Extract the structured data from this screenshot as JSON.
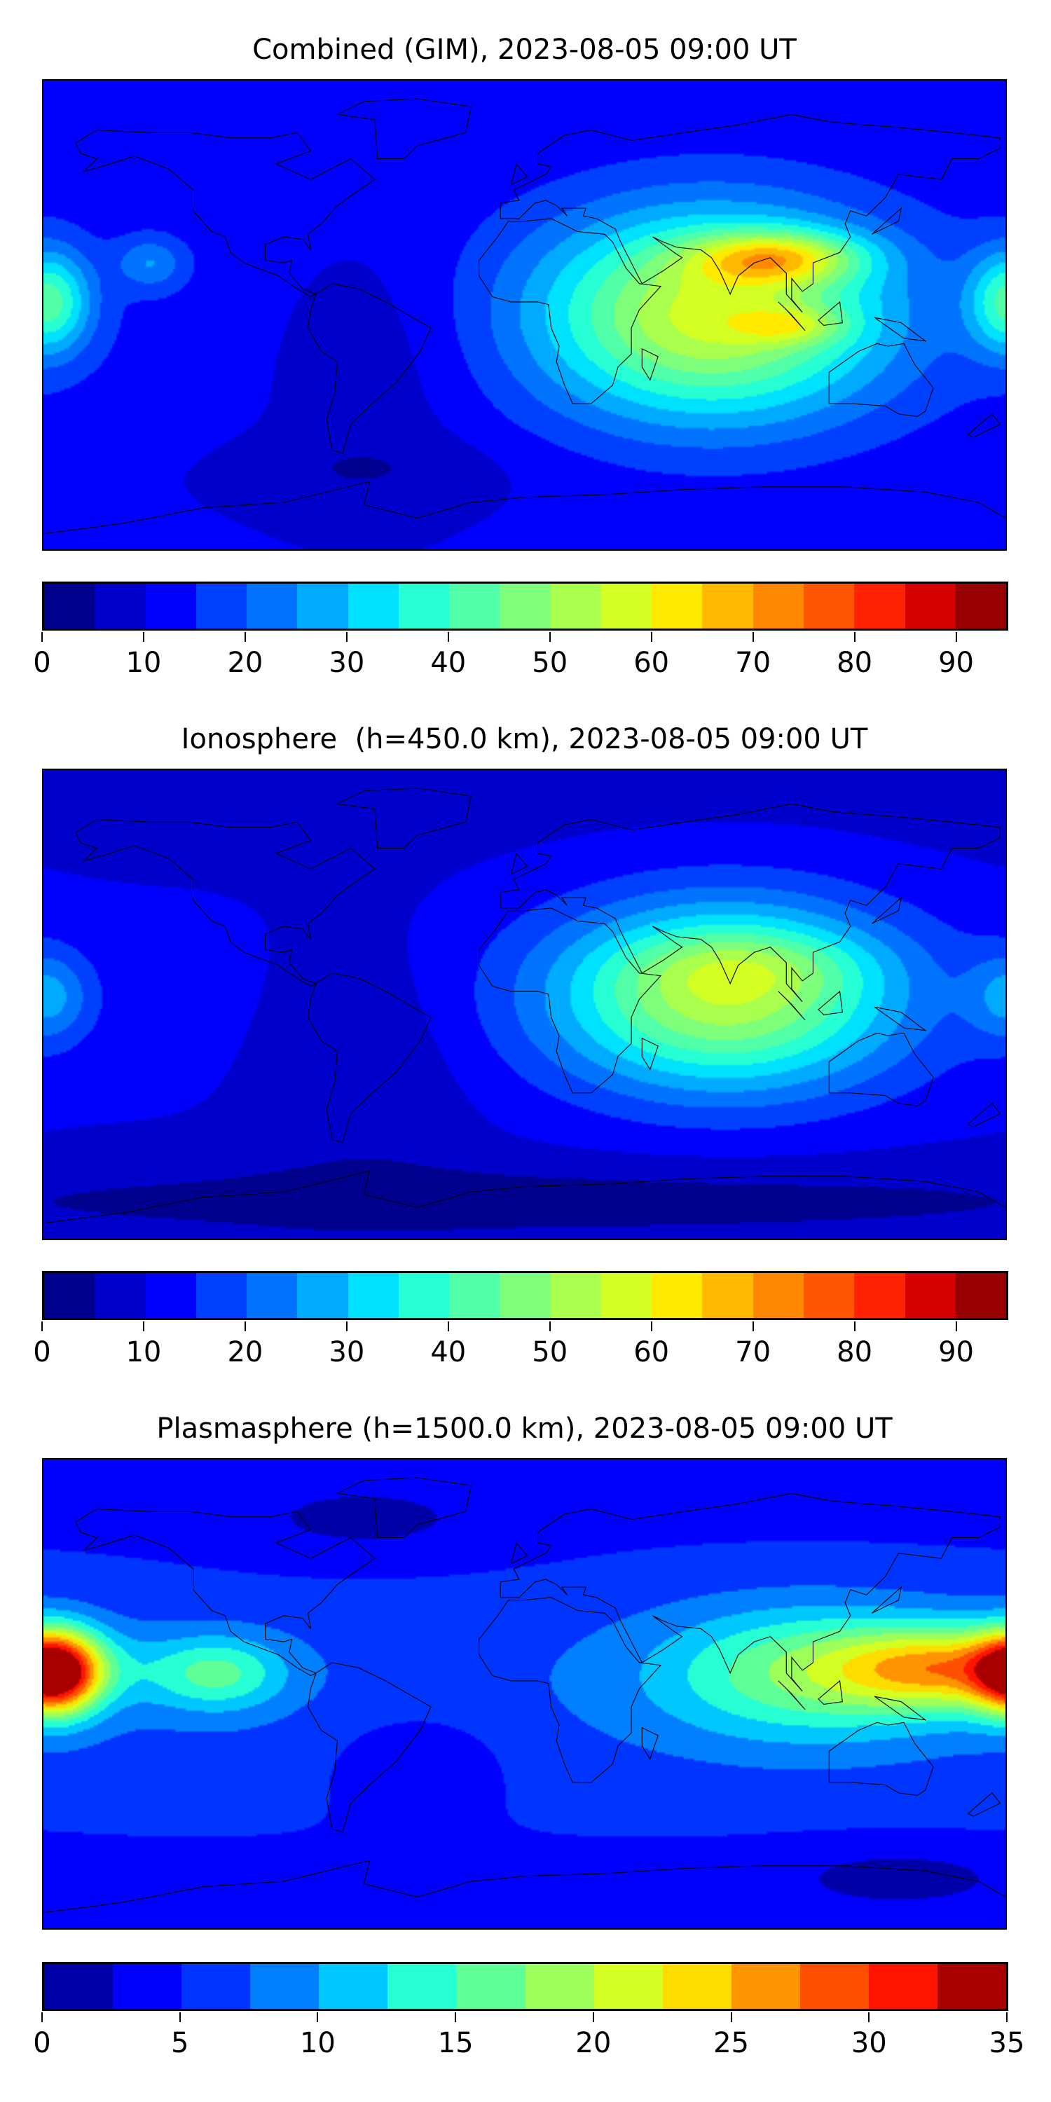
{
  "chart_data": [
    {
      "type": "heatmap",
      "title": "Combined (GIM), 2023-08-05 09:00 UT",
      "projection": "plate-carree global",
      "xlim": [
        -180,
        180
      ],
      "ylim": [
        -90,
        90
      ],
      "levels_min": 0,
      "levels_max": 95,
      "level_step": 5,
      "colors": [
        "#00008f",
        "#0000cc",
        "#0000ff",
        "#0040ff",
        "#0074ff",
        "#00aaff",
        "#00e0ff",
        "#26ffd4",
        "#50ffa8",
        "#7dff7b",
        "#aaff4d",
        "#d4ff23",
        "#ffea00",
        "#ffba00",
        "#ff8800",
        "#ff5500",
        "#ff2200",
        "#d60000",
        "#990000"
      ],
      "colorbar_ticks": [
        "0",
        "10",
        "20",
        "30",
        "40",
        "50",
        "60",
        "70",
        "80",
        "90"
      ],
      "tick_values": [
        0,
        10,
        20,
        30,
        40,
        50,
        60,
        70,
        80,
        90
      ],
      "field_base": 12,
      "features": [
        {
          "lon": 70,
          "lat": 0,
          "amp": 44,
          "sx": 45,
          "sy": 28
        },
        {
          "lon": 95,
          "lat": 22,
          "amp": 30,
          "sx": 22,
          "sy": 7
        },
        {
          "lon": 100,
          "lat": -4,
          "amp": 14,
          "sx": 14,
          "sy": 5
        },
        {
          "lon": -178,
          "lat": 5,
          "amp": 28,
          "sx": 11,
          "sy": 14
        },
        {
          "lon": -140,
          "lat": 20,
          "amp": 12,
          "sx": 9,
          "sy": 7
        },
        {
          "lon": -60,
          "lat": -15,
          "amp": -6,
          "sx": 30,
          "sy": 35
        },
        {
          "lon": -60,
          "lat": -60,
          "amp": -4,
          "sx": 40,
          "sy": 10
        }
      ]
    },
    {
      "type": "heatmap",
      "title": "Ionosphere  (h=450.0 km), 2023-08-05 09:00 UT",
      "projection": "plate-carree global",
      "xlim": [
        -180,
        180
      ],
      "ylim": [
        -90,
        90
      ],
      "levels_min": 0,
      "levels_max": 95,
      "level_step": 5,
      "colors": [
        "#00008f",
        "#0000cc",
        "#0000ff",
        "#0040ff",
        "#0074ff",
        "#00aaff",
        "#00e0ff",
        "#26ffd4",
        "#50ffa8",
        "#7dff7b",
        "#aaff4d",
        "#d4ff23",
        "#ffea00",
        "#ffba00",
        "#ff8800",
        "#ff5500",
        "#ff2200",
        "#d60000",
        "#990000"
      ],
      "colorbar_ticks": [
        "0",
        "10",
        "20",
        "30",
        "40",
        "50",
        "60",
        "70",
        "80",
        "90"
      ],
      "tick_values": [
        0,
        10,
        20,
        30,
        40,
        50,
        60,
        70,
        80,
        90
      ],
      "field_base": 10,
      "features": [
        {
          "lon": 75,
          "lat": 3,
          "amp": 42,
          "sx": 45,
          "sy": 25
        },
        {
          "lon": 85,
          "lat": 15,
          "amp": 8,
          "sx": 30,
          "sy": 9
        },
        {
          "lon": -178,
          "lat": 3,
          "amp": 14,
          "sx": 11,
          "sy": 12
        },
        {
          "lon": -60,
          "lat": -20,
          "amp": -5,
          "sx": 28,
          "sy": 35
        },
        {
          "lon": 0,
          "lat": -75,
          "amp": -6,
          "sx": 180,
          "sy": 10
        }
      ]
    },
    {
      "type": "heatmap",
      "title": "Plasmasphere (h=1500.0 km), 2023-08-05 09:00 UT",
      "projection": "plate-carree global",
      "xlim": [
        -180,
        180
      ],
      "ylim": [
        -90,
        90
      ],
      "levels_min": 0,
      "levels_max": 35,
      "level_step": 2.5,
      "colors": [
        "#0000a8",
        "#0000ff",
        "#0034ff",
        "#0080ff",
        "#00c8ff",
        "#26ffd4",
        "#5fff98",
        "#9cff5a",
        "#d4ff23",
        "#ffdc00",
        "#ff9400",
        "#ff5000",
        "#ff1400",
        "#a80000"
      ],
      "colorbar_ticks": [
        "0",
        "5",
        "10",
        "15",
        "20",
        "25",
        "30",
        "35"
      ],
      "tick_values": [
        0,
        5,
        10,
        15,
        20,
        25,
        30,
        35
      ],
      "field_base": 5.5,
      "features": [
        {
          "lon": -175,
          "lat": 8,
          "amp": 23,
          "sx": 11,
          "sy": 11
        },
        {
          "lon": 160,
          "lat": 10,
          "amp": 16,
          "sx": 30,
          "sy": 11
        },
        {
          "lon": 105,
          "lat": 8,
          "amp": 10,
          "sx": 40,
          "sy": 18
        },
        {
          "lon": -115,
          "lat": 8,
          "amp": 9,
          "sx": 18,
          "sy": 10
        },
        {
          "lon": -40,
          "lat": -25,
          "amp": -3,
          "sx": 25,
          "sy": 15
        },
        {
          "lon": -60,
          "lat": 65,
          "amp": -2.5,
          "sx": 40,
          "sy": 12
        },
        {
          "lon": 140,
          "lat": -70,
          "amp": -3,
          "sx": 30,
          "sy": 8
        }
      ]
    }
  ]
}
